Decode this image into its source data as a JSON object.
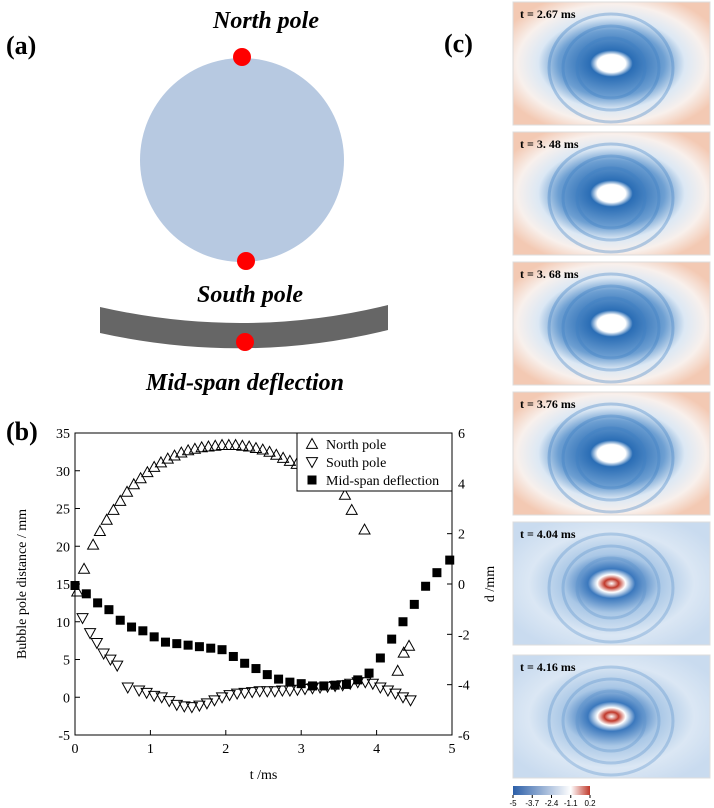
{
  "panel_a": {
    "label": "(a)",
    "north": "North pole",
    "south": "South pole",
    "mid": "Mid-span deflection"
  },
  "panel_c": {
    "label": "(c)",
    "frames": [
      "t = 2.67 ms",
      "t = 3. 48 ms",
      "t = 3. 68 ms",
      "t = 3.76 ms",
      "t = 4.04 ms",
      "t = 4.16 ms"
    ],
    "colorbar_ticks": [
      -5,
      -3.7,
      -2.4,
      -1.1,
      0.2
    ]
  },
  "chart_data": {
    "type": "scatter",
    "panel_label": "(b)",
    "x_label": "t /ms",
    "y_label": "Bubble pole distance / mm",
    "y2_label": "d /mm",
    "xlim": [
      0,
      5
    ],
    "xticks": [
      0,
      1,
      2,
      3,
      4,
      5
    ],
    "ylim": [
      -5,
      35
    ],
    "yticks": [
      -5,
      0,
      5,
      10,
      15,
      20,
      25,
      30,
      35
    ],
    "y2lim": [
      -6,
      6
    ],
    "y2ticks": [
      -6,
      -4,
      -2,
      0,
      2,
      4,
      6
    ],
    "legend": "upper right",
    "series": [
      {
        "name": "North pole",
        "marker": "triangle-up",
        "color": "#000000",
        "x": [
          0.03,
          0.12,
          0.24,
          0.33,
          0.42,
          0.51,
          0.6,
          0.69,
          0.78,
          0.87,
          0.96,
          1.05,
          1.14,
          1.23,
          1.32,
          1.41,
          1.5,
          1.59,
          1.68,
          1.77,
          1.86,
          1.95,
          2.04,
          2.13,
          2.22,
          2.31,
          2.4,
          2.49,
          2.58,
          2.67,
          2.76,
          2.85,
          2.94,
          3.03,
          3.48,
          3.58,
          3.67,
          3.84,
          4.28,
          4.36,
          4.43
        ],
        "values": [
          14,
          17,
          20.2,
          22,
          23.5,
          24.8,
          26,
          27.2,
          28.2,
          29,
          29.8,
          30.5,
          31.1,
          31.6,
          32,
          32.4,
          32.7,
          32.9,
          33.1,
          33.2,
          33.3,
          33.4,
          33.4,
          33.4,
          33.3,
          33.2,
          33,
          32.8,
          32.5,
          32.1,
          31.7,
          31.3,
          30.9,
          30.5,
          30,
          26.8,
          24.8,
          22.2,
          3.5,
          5.9,
          6.8
        ]
      },
      {
        "name": "South pole",
        "marker": "triangle-down",
        "color": "#000000",
        "x": [
          0.1,
          0.2,
          0.29,
          0.38,
          0.47,
          0.56,
          0.7,
          0.85,
          0.95,
          1.05,
          1.15,
          1.25,
          1.35,
          1.45,
          1.55,
          1.65,
          1.75,
          1.85,
          1.95,
          2.05,
          2.15,
          2.25,
          2.35,
          2.45,
          2.55,
          2.65,
          2.75,
          2.85,
          2.95,
          3.05,
          3.15,
          3.25,
          3.35,
          3.45,
          3.55,
          3.65,
          3.75,
          3.85,
          3.95,
          4.05,
          4.15,
          4.25,
          4.35,
          4.45
        ],
        "values": [
          10.5,
          8.5,
          7.2,
          5.8,
          5,
          4.2,
          1.3,
          0.9,
          0.6,
          0.2,
          0,
          -0.5,
          -1,
          -1.2,
          -1.3,
          -1.1,
          -0.8,
          -0.4,
          0,
          0.3,
          0.5,
          0.6,
          0.7,
          0.8,
          0.8,
          0.8,
          0.9,
          0.9,
          1,
          1.1,
          1.2,
          1.3,
          1.4,
          1.5,
          1.6,
          1.8,
          2,
          2,
          1.8,
          1.3,
          0.9,
          0.5,
          0,
          -0.4
        ]
      },
      {
        "name": "Mid-span deflection",
        "marker": "square",
        "color": "#000000",
        "axis": "y2",
        "x": [
          0,
          0.15,
          0.3,
          0.45,
          0.6,
          0.75,
          0.9,
          1.05,
          1.2,
          1.35,
          1.5,
          1.65,
          1.8,
          1.95,
          2.1,
          2.25,
          2.4,
          2.55,
          2.7,
          2.85,
          3,
          3.15,
          3.3,
          3.45,
          3.6,
          3.75,
          3.9,
          4.05,
          4.2,
          4.35,
          4.5,
          4.65,
          4.8,
          4.97
        ],
        "values": [
          -0.06,
          -0.39,
          -0.75,
          -1.02,
          -1.44,
          -1.71,
          -1.86,
          -2.1,
          -2.31,
          -2.37,
          -2.43,
          -2.49,
          -2.55,
          -2.61,
          -2.88,
          -3.15,
          -3.36,
          -3.6,
          -3.78,
          -3.9,
          -3.96,
          -4.05,
          -4.05,
          -4.02,
          -3.99,
          -3.81,
          -3.54,
          -2.94,
          -2.19,
          -1.5,
          -0.81,
          -0.09,
          0.45,
          0.95
        ]
      }
    ]
  }
}
